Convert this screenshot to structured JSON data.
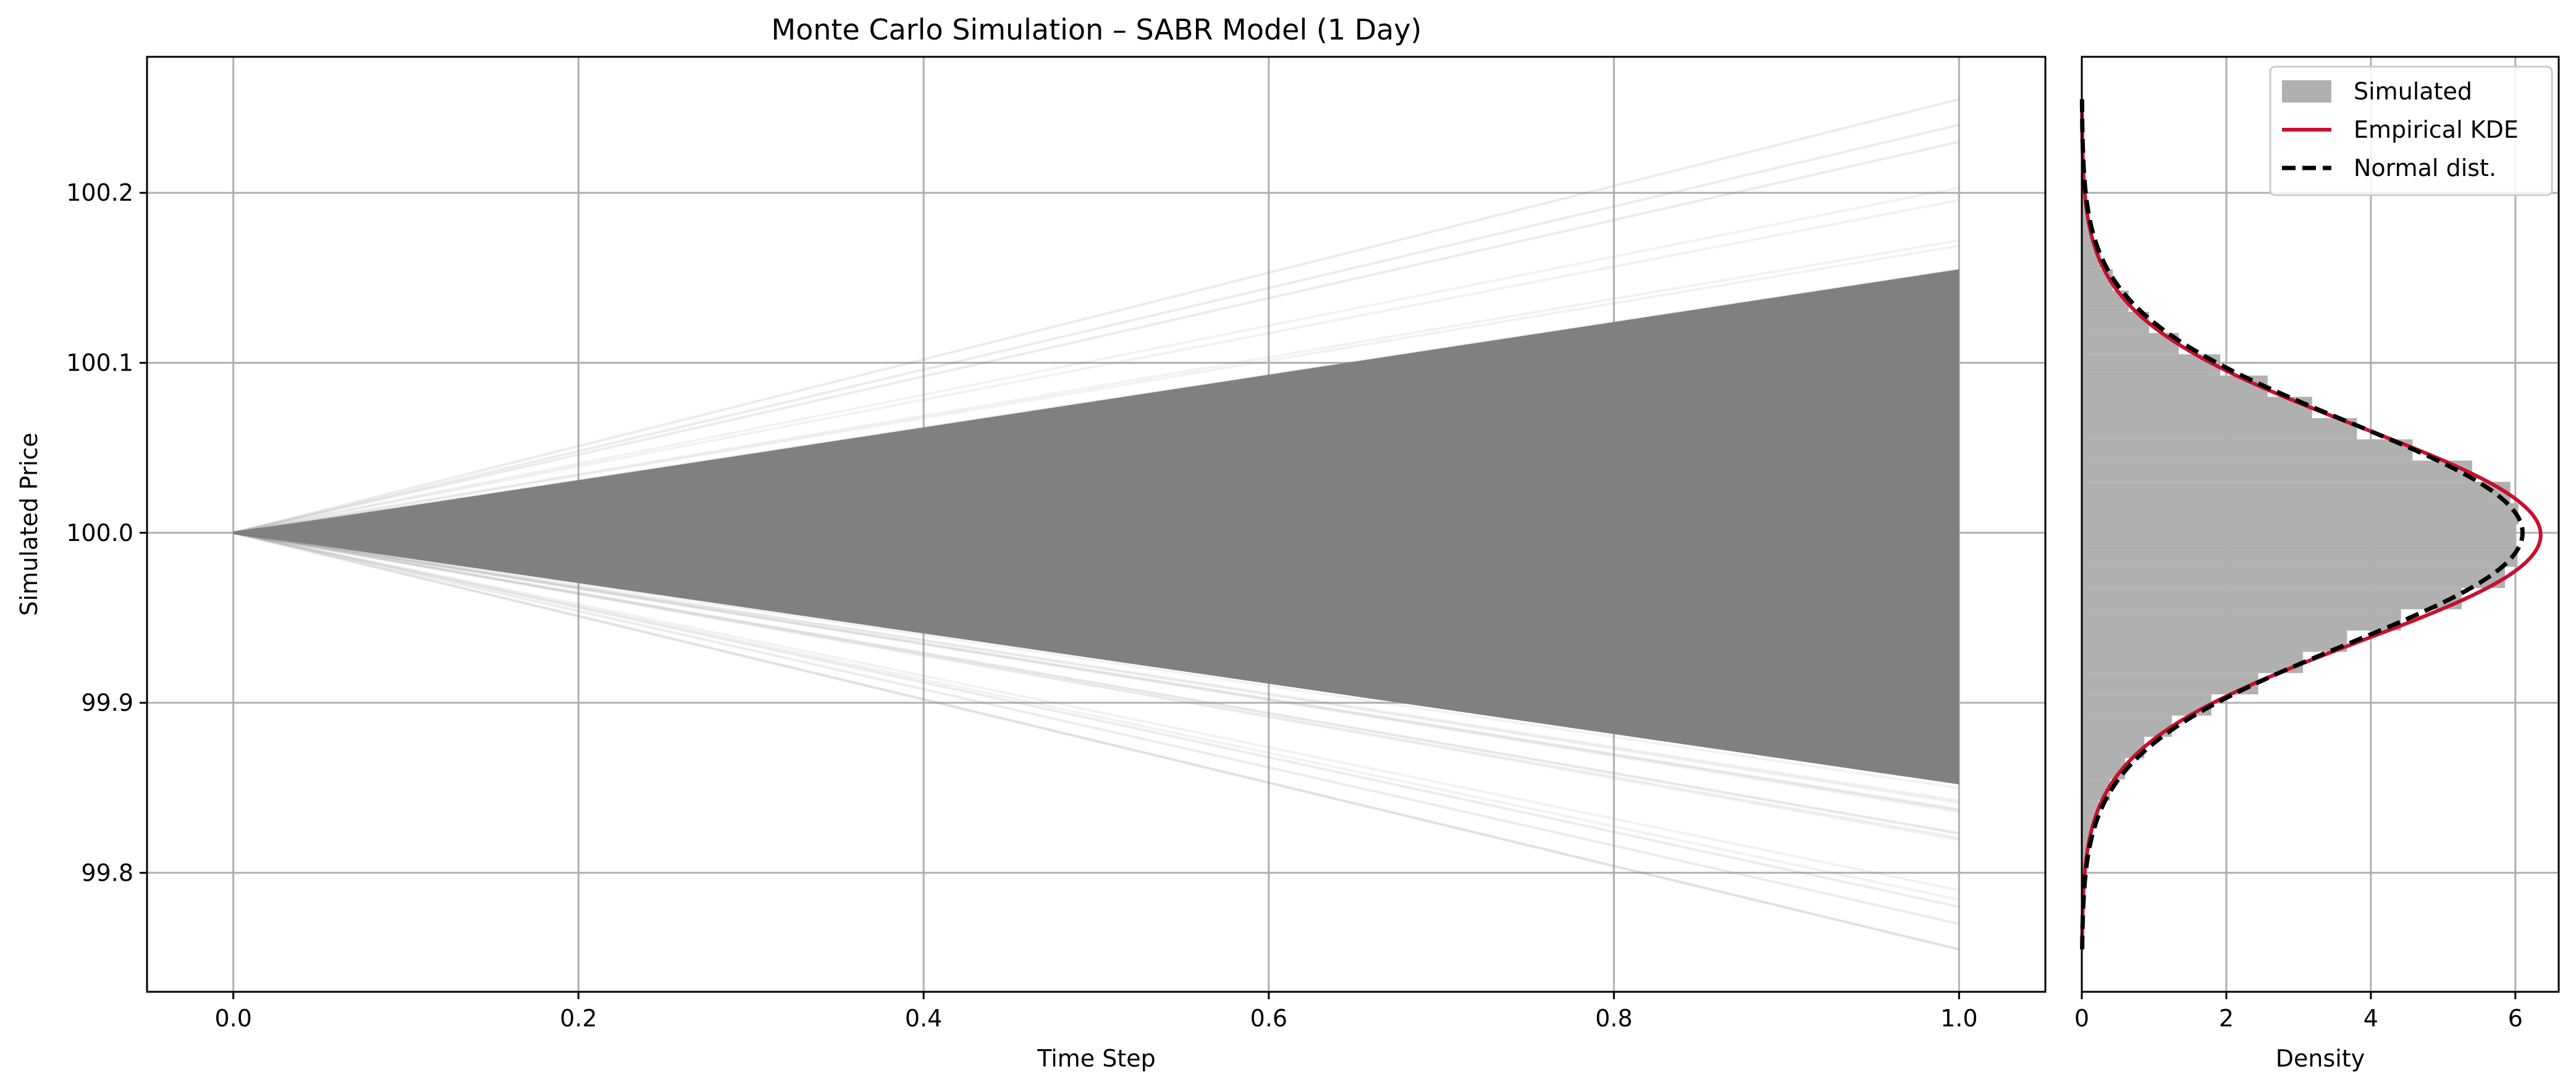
{
  "title": "Monte Carlo Simulation – SABR Model (1 Day)",
  "colors": {
    "paths": "#808080",
    "histogram": "#b0b0b0",
    "kde": "#c8102e",
    "normal": "#000000",
    "grid": "#b0b0b0"
  },
  "chart_data": [
    {
      "type": "line",
      "title": "Monte Carlo Simulation – SABR Model (1 Day)",
      "xlabel": "Time Step",
      "ylabel": "Simulated Price",
      "xlim": [
        -0.05,
        1.05
      ],
      "ylim": [
        99.73,
        100.28
      ],
      "x_ticks": [
        "0.0",
        "0.2",
        "0.4",
        "0.6",
        "0.8",
        "1.0"
      ],
      "y_ticks": [
        "99.8",
        "99.9",
        "100.0",
        "100.1",
        "100.2"
      ],
      "grid": true,
      "x": [
        0.0,
        1.0
      ],
      "start_price": 100.0,
      "end_price_range": [
        99.755,
        100.255
      ],
      "path_color": "#808080",
      "description_of_series": "many simulated paths from 100.0 at t=0 to terminal prices at t=1"
    },
    {
      "type": "area",
      "xlabel": "Density",
      "ylabel": "",
      "xlim": [
        0,
        6.6
      ],
      "ylim": [
        99.73,
        100.28
      ],
      "x_ticks": [
        "0",
        "2",
        "4",
        "6"
      ],
      "grid": true,
      "orientation": "horizontal",
      "legend_position": "top-right",
      "series": [
        {
          "name": "Simulated",
          "kind": "histogram",
          "mean": 100.0,
          "std": 0.064,
          "peak_density": 6.2
        },
        {
          "name": "Empirical KDE",
          "kind": "line",
          "mean": 100.0,
          "std": 0.063,
          "peak_density": 6.35
        },
        {
          "name": "Normal dist.",
          "kind": "dashed-line",
          "mean": 100.0,
          "std": 0.065,
          "peak_density": 6.1
        }
      ]
    }
  ]
}
